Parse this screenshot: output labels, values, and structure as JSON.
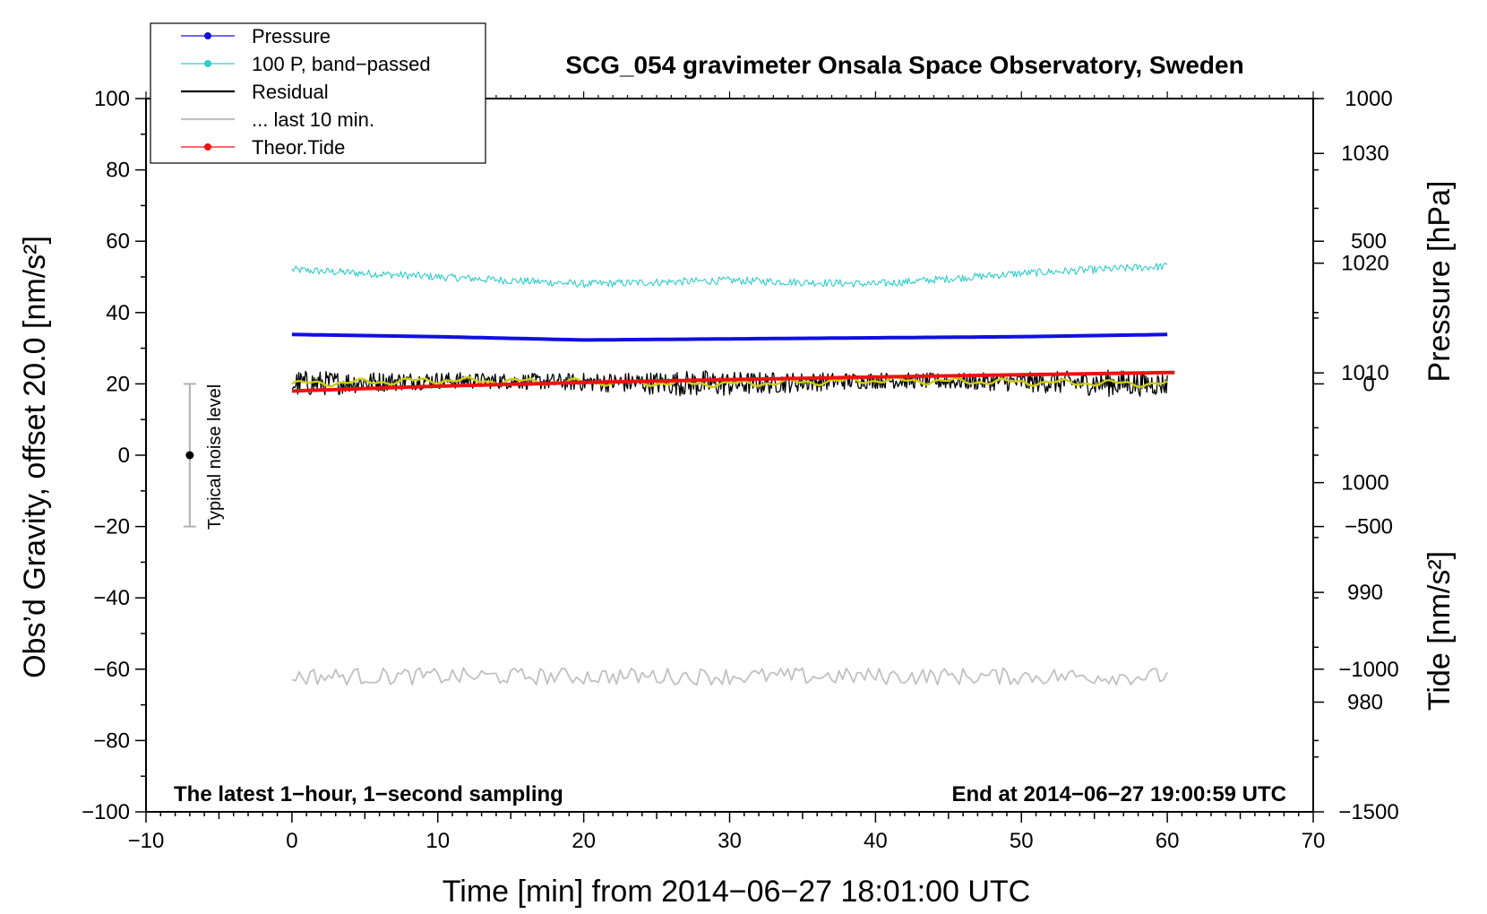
{
  "chart_data": {
    "type": "line",
    "title": "SCG_054 gravimeter Onsala Space Observatory, Sweden",
    "xlabel": "Time [min] from 2014−06−27 18:01:00 UTC",
    "ylabel_left": "Obs’d Gravity, offset 20.0 [nm/s²]",
    "ylabel_right_pressure": "Pressure [hPa]",
    "ylabel_right_tide": "Tide [nm/s²]",
    "xlim": [
      -10,
      70
    ],
    "ylim": [
      -100,
      100
    ],
    "pressure_lim": [
      970,
      1035
    ],
    "tide_lim": [
      -1500,
      1000
    ],
    "xticks": [
      "−10",
      "0",
      "10",
      "20",
      "30",
      "40",
      "50",
      "60",
      "70"
    ],
    "yticks_left": [
      "100",
      "80",
      "60",
      "40",
      "20",
      "0",
      "−20",
      "−40",
      "−60",
      "−80",
      "−100"
    ],
    "yticks_pressure": [
      "1030",
      "1020",
      "1010",
      "1000",
      "990",
      "980"
    ],
    "yticks_tide": [
      "1000",
      "500",
      "0",
      "−500",
      "−1000",
      "−1500"
    ],
    "legend_position": "top-left",
    "legend": [
      {
        "label": "Pressure",
        "color": "#1010e0",
        "style": "line-dot"
      },
      {
        "label": "100 P, band−passed",
        "color": "#30cccc",
        "style": "line-dot"
      },
      {
        "label": "Residual",
        "color": "#000000",
        "style": "line"
      },
      {
        "label": "... last 10 min.",
        "color": "#c0c0c0",
        "style": "line"
      },
      {
        "label": "Theor.Tide",
        "color": "#ee1111",
        "style": "line-dot"
      }
    ],
    "series": [
      {
        "name": "Pressure",
        "axis": "pressure",
        "color": "#1010e0",
        "x": [
          0,
          10,
          20,
          30,
          40,
          50,
          60
        ],
        "values": [
          1013.5,
          1013.3,
          1013.0,
          1013.1,
          1013.2,
          1013.3,
          1013.5
        ]
      },
      {
        "name": "100 P, band−passed",
        "axis": "left",
        "color": "#30cccc",
        "x": [
          0,
          10,
          20,
          30,
          40,
          50,
          60
        ],
        "values": [
          52,
          50,
          48,
          49,
          48,
          51,
          53
        ]
      },
      {
        "name": "Residual",
        "axis": "left",
        "color": "#000000",
        "x": [
          0,
          10,
          20,
          30,
          40,
          50,
          60
        ],
        "values": [
          20,
          21,
          20.5,
          20,
          21,
          20.5,
          20
        ]
      },
      {
        "name": "... last 10 min.",
        "axis": "left",
        "color": "#c0c0c0",
        "x": [
          0,
          10,
          20,
          30,
          40,
          50,
          60
        ],
        "values": [
          -62,
          -62,
          -62,
          -62,
          -62,
          -62,
          -62
        ]
      },
      {
        "name": "Theor.Tide",
        "axis": "tide",
        "color": "#ee1111",
        "x": [
          0,
          10,
          20,
          30,
          40,
          50,
          60.5
        ],
        "values": [
          -25,
          -8,
          5,
          15,
          24,
          32,
          40
        ]
      }
    ],
    "smoothed_residual_color": "#cccc10",
    "noise_level": {
      "label": "Typical noise level",
      "x": -7,
      "y": 0,
      "low": -20,
      "high": 20
    },
    "note_left": "The latest 1−hour, 1−second sampling",
    "note_right": "End at 2014−06−27 19:00:59 UTC",
    "grid": false
  }
}
